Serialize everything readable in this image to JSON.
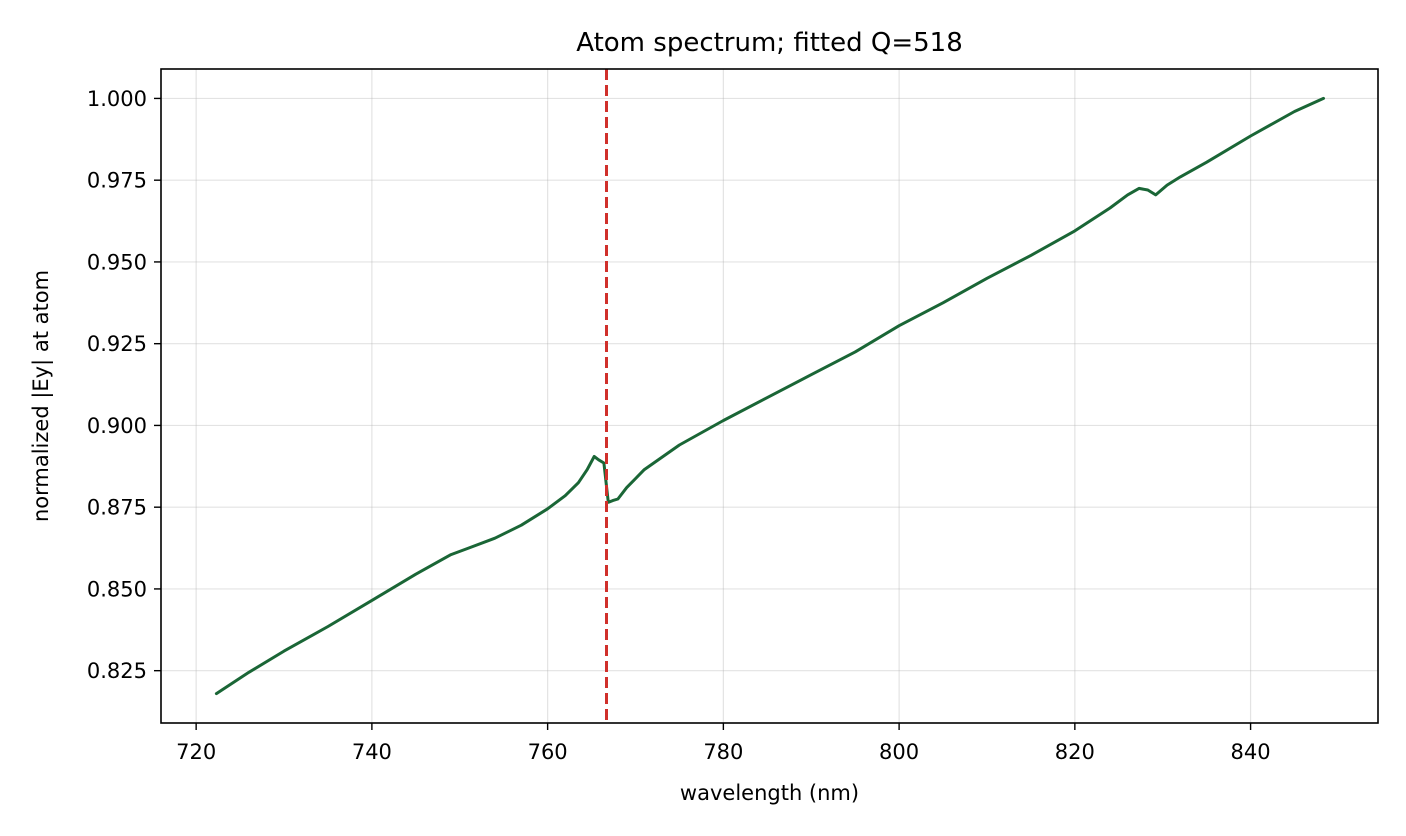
{
  "chart_data": {
    "type": "line",
    "title": "Atom spectrum; fitted Q=518",
    "xlabel": "wavelength (nm)",
    "ylabel": "normalized |Ey| at atom",
    "xlim": [
      716.0,
      854.5
    ],
    "ylim": [
      0.809,
      1.009
    ],
    "xticks": [
      720,
      740,
      760,
      780,
      800,
      820,
      840
    ],
    "xtick_labels": [
      "720",
      "740",
      "760",
      "780",
      "800",
      "820",
      "840"
    ],
    "yticks": [
      0.825,
      0.85,
      0.875,
      0.9,
      0.925,
      0.95,
      0.975,
      1.0
    ],
    "ytick_labels": [
      "0.825",
      "0.850",
      "0.875",
      "0.900",
      "0.925",
      "0.950",
      "0.975",
      "1.000"
    ],
    "grid": true,
    "colors": {
      "series": "#1a6636",
      "marker_line": "#d0302b"
    },
    "series": [
      {
        "x": [
          722.3,
          726.0,
          730.0,
          735.0,
          740.0,
          745.0,
          749.0,
          751.0,
          754.0,
          757.0,
          760.0,
          762.0,
          763.5,
          764.5,
          765.3,
          765.8,
          766.4,
          766.9,
          767.4,
          768.0,
          769.0,
          771.0,
          775.0,
          780.0,
          785.0,
          790.0,
          795.0,
          800.0,
          805.0,
          810.0,
          815.0,
          820.0,
          824.0,
          826.0,
          827.3,
          828.3,
          829.2,
          830.5,
          832.0,
          835.0,
          840.0,
          845.0,
          848.3
        ],
        "y": [
          0.818,
          0.8245,
          0.831,
          0.8385,
          0.8465,
          0.8545,
          0.8605,
          0.8625,
          0.8655,
          0.8695,
          0.8745,
          0.8785,
          0.8825,
          0.8865,
          0.8905,
          0.8895,
          0.8885,
          0.8765,
          0.877,
          0.8775,
          0.881,
          0.8865,
          0.894,
          0.9015,
          0.9085,
          0.9155,
          0.9225,
          0.9305,
          0.9375,
          0.945,
          0.952,
          0.9595,
          0.9665,
          0.9705,
          0.9725,
          0.972,
          0.9705,
          0.9735,
          0.976,
          0.9805,
          0.9885,
          0.996,
          1.0
        ]
      }
    ],
    "vlines": [
      {
        "x": 766.7,
        "style": "dashed"
      }
    ]
  }
}
